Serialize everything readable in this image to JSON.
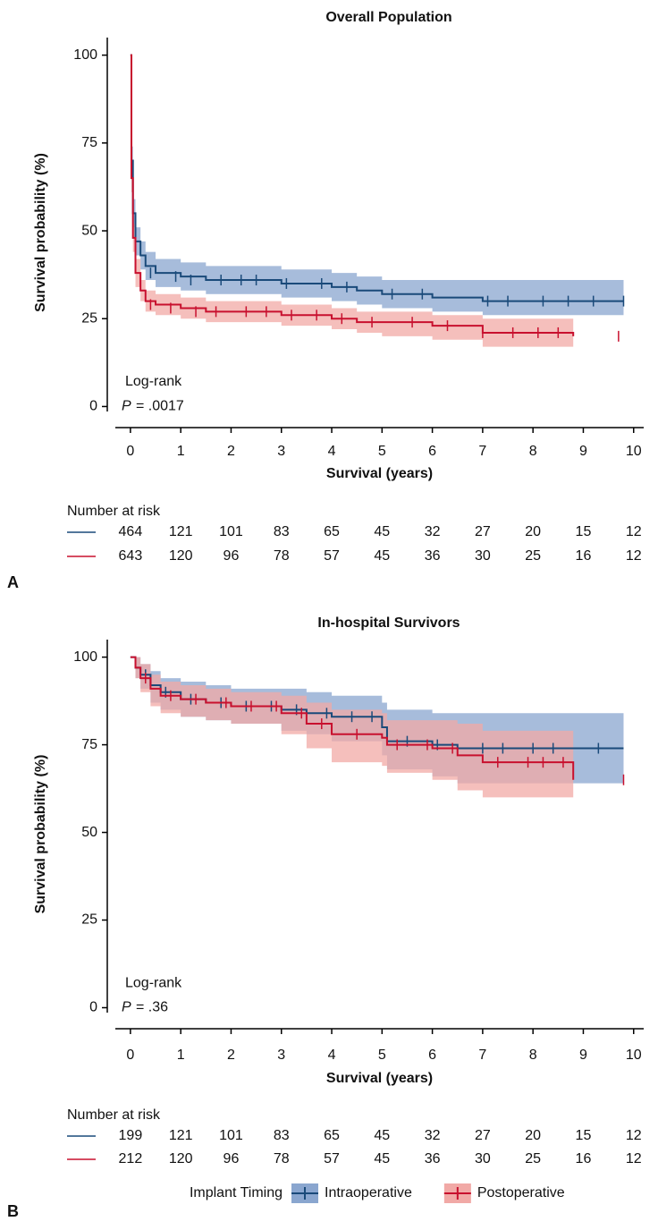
{
  "chart_data": [
    {
      "type": "line",
      "step": true,
      "panel": "A",
      "title": "Overall Population",
      "xlabel": "Survival (years)",
      "ylabel": "Survival probability (%)",
      "xlim": [
        -0.3,
        10.2
      ],
      "ylim": [
        -6,
        105
      ],
      "xticks": [
        0,
        1,
        2,
        3,
        4,
        5,
        6,
        7,
        8,
        9,
        10
      ],
      "yticks": [
        0,
        25,
        50,
        75,
        100
      ],
      "annotation": "Log-rank",
      "p_label": "P",
      "p_value": "= .0017",
      "risk_title": "Number at risk",
      "risk_x": [
        0,
        1,
        2,
        3,
        4,
        5,
        6,
        7,
        8,
        9,
        10
      ],
      "series": [
        {
          "name": "Intraoperative",
          "color": "#1a4a7a",
          "band_color": "#8aa6cf",
          "x": [
            0,
            0.02,
            0.05,
            0.1,
            0.2,
            0.3,
            0.5,
            1,
            1.5,
            2,
            3,
            4,
            4.5,
            5,
            6,
            7,
            9.8
          ],
          "values": [
            100,
            70,
            55,
            47,
            43,
            40,
            38,
            37,
            36,
            36,
            35,
            34,
            33,
            32,
            31,
            30,
            30
          ],
          "lower": [
            100,
            66,
            51,
            43,
            39,
            36,
            34,
            33,
            32,
            32,
            31,
            30,
            29,
            28,
            27,
            26,
            26
          ],
          "upper": [
            100,
            74,
            59,
            51,
            47,
            44,
            42,
            41,
            40,
            40,
            39,
            38,
            37,
            36,
            36,
            36,
            36
          ],
          "censored": {
            "x": [
              0.4,
              0.9,
              1.2,
              1.8,
              2.2,
              2.5,
              3.1,
              3.8,
              4.3,
              5.2,
              5.8,
              7.1,
              7.5,
              8.2,
              8.7,
              9.2,
              9.8
            ],
            "values": [
              38,
              37,
              36,
              36,
              36,
              36,
              35,
              35,
              34,
              32,
              32,
              30,
              30,
              30,
              30,
              30,
              30
            ]
          },
          "at_risk": [
            464,
            121,
            101,
            83,
            65,
            45,
            32,
            27,
            20,
            15,
            12
          ]
        },
        {
          "name": "Postoperative",
          "color": "#c8102e",
          "band_color": "#f1a9a6",
          "x": [
            0,
            0.02,
            0.05,
            0.1,
            0.2,
            0.3,
            0.5,
            1,
            1.5,
            2,
            3,
            4,
            4.5,
            5,
            6,
            7,
            8.8
          ],
          "values": [
            100,
            65,
            48,
            38,
            33,
            30,
            29,
            28,
            27,
            27,
            26,
            25,
            24,
            24,
            23,
            21,
            20
          ],
          "lower": [
            100,
            61,
            44,
            34,
            30,
            27,
            26,
            25,
            24,
            24,
            23,
            22,
            21,
            20,
            19,
            17,
            16
          ],
          "upper": [
            100,
            69,
            52,
            42,
            36,
            33,
            32,
            31,
            30,
            30,
            29,
            28,
            27,
            27,
            26,
            25,
            24
          ],
          "censored": {
            "x": [
              0.4,
              0.8,
              1.3,
              1.7,
              2.3,
              2.7,
              3.2,
              3.7,
              4.2,
              4.8,
              5.6,
              6.3,
              7,
              7.6,
              8.1,
              8.5,
              9.7
            ],
            "values": [
              29,
              28,
              27,
              27,
              27,
              27,
              26,
              26,
              25,
              24,
              24,
              23,
              21,
              21,
              21,
              21,
              20
            ]
          },
          "at_risk": [
            643,
            120,
            96,
            78,
            57,
            45,
            36,
            30,
            25,
            16,
            12
          ]
        }
      ]
    },
    {
      "type": "line",
      "step": true,
      "panel": "B",
      "title": "In-hospital Survivors",
      "xlabel": "Survival (years)",
      "ylabel": "Survival probability (%)",
      "xlim": [
        -0.3,
        10.2
      ],
      "ylim": [
        -6,
        105
      ],
      "xticks": [
        0,
        1,
        2,
        3,
        4,
        5,
        6,
        7,
        8,
        9,
        10
      ],
      "yticks": [
        0,
        25,
        50,
        75,
        100
      ],
      "annotation": "Log-rank",
      "p_label": "P",
      "p_value": "= .36",
      "risk_title": "Number at risk",
      "risk_x": [
        0,
        1,
        2,
        3,
        4,
        5,
        6,
        7,
        8,
        9,
        10
      ],
      "legend_title": "Implant Timing",
      "series": [
        {
          "name": "Intraoperative",
          "color": "#1a4a7a",
          "band_color": "#8aa6cf",
          "x": [
            0,
            0.1,
            0.2,
            0.4,
            0.6,
            1,
            1.5,
            2,
            3,
            3.5,
            4,
            5,
            5.1,
            6,
            6.5,
            7,
            9.8
          ],
          "values": [
            100,
            97,
            95,
            92,
            90,
            88,
            87,
            86,
            85,
            84,
            83,
            80,
            76,
            75,
            74,
            74,
            74
          ],
          "lower": [
            100,
            94,
            91,
            87,
            85,
            83,
            82,
            81,
            79,
            78,
            76,
            72,
            68,
            66,
            64,
            64,
            64
          ],
          "upper": [
            100,
            100,
            98,
            96,
            94,
            93,
            92,
            91,
            91,
            90,
            89,
            87,
            85,
            84,
            84,
            84,
            84
          ],
          "censored": {
            "x": [
              0.3,
              0.7,
              1.2,
              1.8,
              2.3,
              2.8,
              3.3,
              3.9,
              4.4,
              4.8,
              5.5,
              6.1,
              7,
              7.4,
              8,
              8.4,
              9.3
            ],
            "values": [
              95,
              90,
              88,
              87,
              86,
              86,
              85,
              84,
              83,
              83,
              76,
              75,
              74,
              74,
              74,
              74,
              74
            ]
          },
          "at_risk": [
            199,
            121,
            101,
            83,
            65,
            45,
            32,
            27,
            20,
            15,
            12
          ]
        },
        {
          "name": "Postoperative",
          "color": "#c8102e",
          "band_color": "#f1a9a6",
          "x": [
            0,
            0.1,
            0.2,
            0.4,
            0.6,
            1,
            1.5,
            2,
            3,
            3.5,
            4,
            5,
            5.1,
            6,
            6.5,
            7,
            8.8
          ],
          "values": [
            100,
            97,
            94,
            91,
            89,
            88,
            87,
            86,
            84,
            81,
            78,
            77,
            75,
            74,
            72,
            70,
            65
          ],
          "lower": [
            100,
            94,
            90,
            86,
            84,
            83,
            82,
            81,
            78,
            74,
            70,
            69,
            67,
            65,
            62,
            60,
            54
          ],
          "upper": [
            100,
            100,
            98,
            95,
            93,
            92,
            91,
            90,
            89,
            87,
            85,
            84,
            82,
            82,
            81,
            79,
            78
          ],
          "censored": {
            "x": [
              0.3,
              0.8,
              1.3,
              1.9,
              2.4,
              2.9,
              3.4,
              3.8,
              4.5,
              5.3,
              5.9,
              6.4,
              7.3,
              7.9,
              8.2,
              8.6,
              9.8
            ],
            "values": [
              94,
              89,
              88,
              87,
              86,
              86,
              84,
              81,
              78,
              75,
              75,
              74,
              70,
              70,
              70,
              70,
              65
            ]
          },
          "at_risk": [
            212,
            120,
            96,
            78,
            57,
            45,
            36,
            30,
            25,
            16,
            12
          ]
        }
      ]
    }
  ]
}
